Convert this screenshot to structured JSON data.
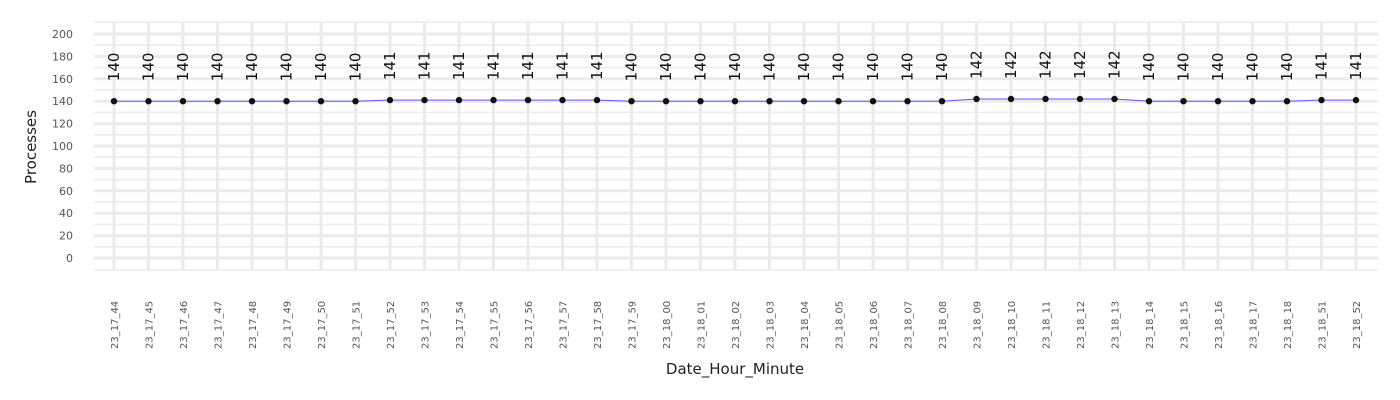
{
  "chart_data": {
    "type": "line",
    "title": "",
    "xlabel": "Date_Hour_Minute",
    "ylabel": "Processes",
    "ylim": [
      0,
      200
    ],
    "yticks": [
      0,
      20,
      40,
      60,
      80,
      100,
      120,
      140,
      160,
      180,
      200
    ],
    "grid": true,
    "colors": {
      "line": "#5b5bf0",
      "point": "#111111",
      "grid": "#ebebeb"
    },
    "categories": [
      "23_17_44",
      "23_17_45",
      "23_17_46",
      "23_17_47",
      "23_17_48",
      "23_17_49",
      "23_17_50",
      "23_17_51",
      "23_17_52",
      "23_17_53",
      "23_17_54",
      "23_17_55",
      "23_17_56",
      "23_17_57",
      "23_17_58",
      "23_17_59",
      "23_18_00",
      "23_18_01",
      "23_18_02",
      "23_18_03",
      "23_18_04",
      "23_18_05",
      "23_18_06",
      "23_18_07",
      "23_18_08",
      "23_18_09",
      "23_18_10",
      "23_18_11",
      "23_18_12",
      "23_18_13",
      "23_18_14",
      "23_18_15",
      "23_18_16",
      "23_18_17",
      "23_18_18",
      "23_18_51",
      "23_18_52"
    ],
    "values": [
      140,
      140,
      140,
      140,
      140,
      140,
      140,
      140,
      141,
      141,
      141,
      141,
      141,
      141,
      141,
      140,
      140,
      140,
      140,
      140,
      140,
      140,
      140,
      140,
      140,
      142,
      142,
      142,
      142,
      142,
      140,
      140,
      140,
      140,
      140,
      141,
      141
    ]
  }
}
